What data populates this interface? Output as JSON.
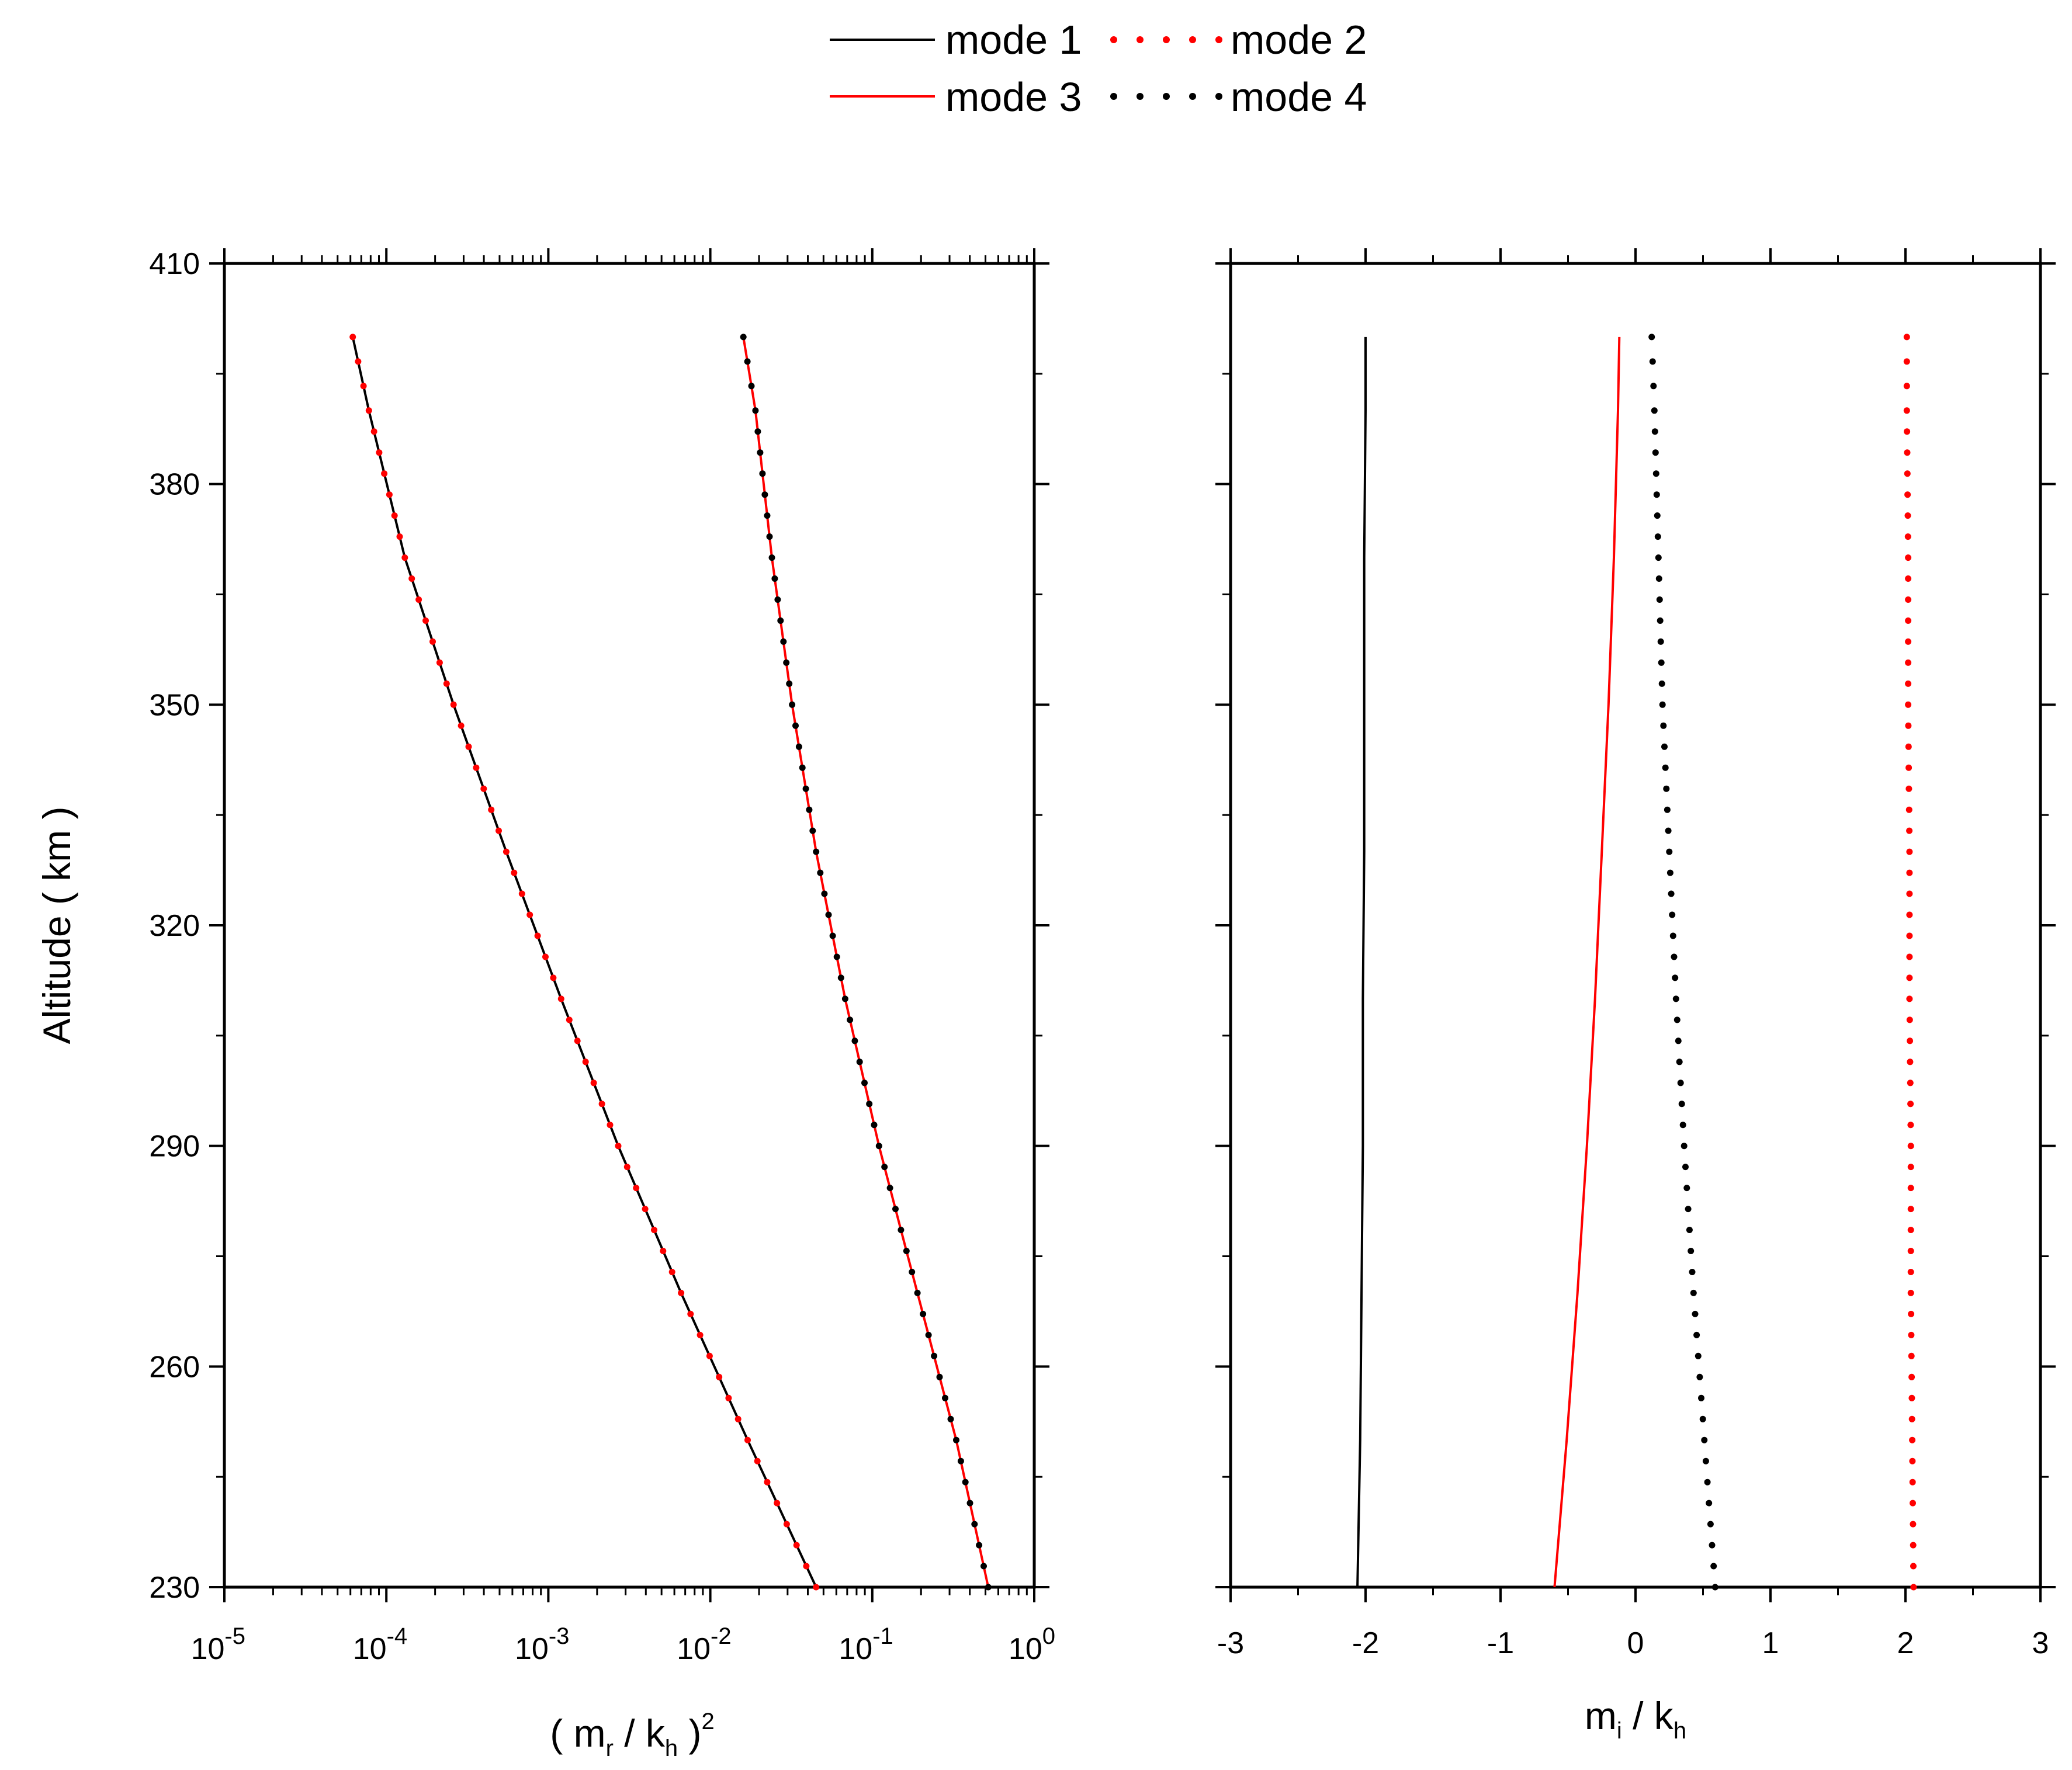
{
  "chart_data": [
    {
      "type": "line",
      "panel": "left",
      "xlabel_parts": [
        "( m",
        "r",
        " / k",
        "h",
        " )",
        "2"
      ],
      "ylabel": "Altitude ( km )",
      "xscale": "log",
      "xlim": [
        1e-05,
        1
      ],
      "ylim": [
        230,
        410
      ],
      "xticks": [
        {
          "base": "10",
          "exp": "-5"
        },
        {
          "base": "10",
          "exp": "-4"
        },
        {
          "base": "10",
          "exp": "-3"
        },
        {
          "base": "10",
          "exp": "-2"
        },
        {
          "base": "10",
          "exp": "-1"
        },
        {
          "base": "10",
          "exp": "0"
        }
      ],
      "yticks": [
        "230",
        "260",
        "290",
        "320",
        "350",
        "380",
        "410"
      ],
      "altitude": [
        230,
        250,
        270,
        290,
        310,
        330,
        350,
        370,
        390,
        400
      ],
      "series": [
        {
          "name": "mode 1",
          "style": "solid",
          "color": "#000000",
          "values": [
            0.045,
            0.017,
            0.0066,
            0.0027,
            0.0012,
            0.00055,
            0.00026,
            0.00013,
            7.8e-05,
            6.2e-05
          ]
        },
        {
          "name": "mode 2",
          "style": "dot",
          "color": "#ff0000",
          "values": [
            0.045,
            0.017,
            0.0066,
            0.0027,
            0.0012,
            0.00055,
            0.00026,
            0.00013,
            7.8e-05,
            6.2e-05
          ]
        },
        {
          "name": "mode 3",
          "style": "solid",
          "color": "#ff0000",
          "values": [
            0.52,
            0.33,
            0.19,
            0.11,
            0.068,
            0.045,
            0.032,
            0.024,
            0.019,
            0.016
          ]
        },
        {
          "name": "mode 4",
          "style": "dot",
          "color": "#000000",
          "values": [
            0.52,
            0.33,
            0.19,
            0.11,
            0.068,
            0.045,
            0.032,
            0.024,
            0.019,
            0.016
          ]
        }
      ]
    },
    {
      "type": "line",
      "panel": "right",
      "xlabel_parts": [
        "m",
        "i",
        " / k",
        "h"
      ],
      "xscale": "linear",
      "xlim": [
        -3,
        3
      ],
      "ylim": [
        230,
        410
      ],
      "xticks": [
        "-3",
        "-2",
        "-1",
        "0",
        "1",
        "2",
        "3"
      ],
      "altitude": [
        230,
        250,
        270,
        290,
        310,
        330,
        350,
        370,
        390,
        400
      ],
      "series": [
        {
          "name": "mode 1",
          "style": "solid",
          "color": "#000000",
          "values": [
            -2.06,
            -2.04,
            -2.03,
            -2.02,
            -2.02,
            -2.01,
            -2.01,
            -2.01,
            -2.0,
            -2.0
          ]
        },
        {
          "name": "mode 2",
          "style": "dot",
          "color": "#ff0000",
          "values": [
            2.06,
            2.05,
            2.04,
            2.04,
            2.03,
            2.03,
            2.02,
            2.02,
            2.01,
            2.01
          ]
        },
        {
          "name": "mode 3",
          "style": "solid",
          "color": "#ff0000",
          "values": [
            -0.6,
            -0.51,
            -0.43,
            -0.36,
            -0.3,
            -0.25,
            -0.2,
            -0.16,
            -0.13,
            -0.12
          ]
        },
        {
          "name": "mode 4",
          "style": "dot",
          "color": "#000000",
          "values": [
            0.59,
            0.51,
            0.43,
            0.36,
            0.3,
            0.25,
            0.2,
            0.17,
            0.14,
            0.12
          ]
        }
      ]
    }
  ],
  "legend": {
    "placement": "top-center",
    "items": [
      {
        "label": "mode 1",
        "style": "solid",
        "color": "#000000"
      },
      {
        "label": "mode 2",
        "style": "dot",
        "color": "#ff0000"
      },
      {
        "label": "mode 3",
        "style": "solid",
        "color": "#ff0000"
      },
      {
        "label": "mode 4",
        "style": "dot",
        "color": "#000000"
      }
    ]
  }
}
